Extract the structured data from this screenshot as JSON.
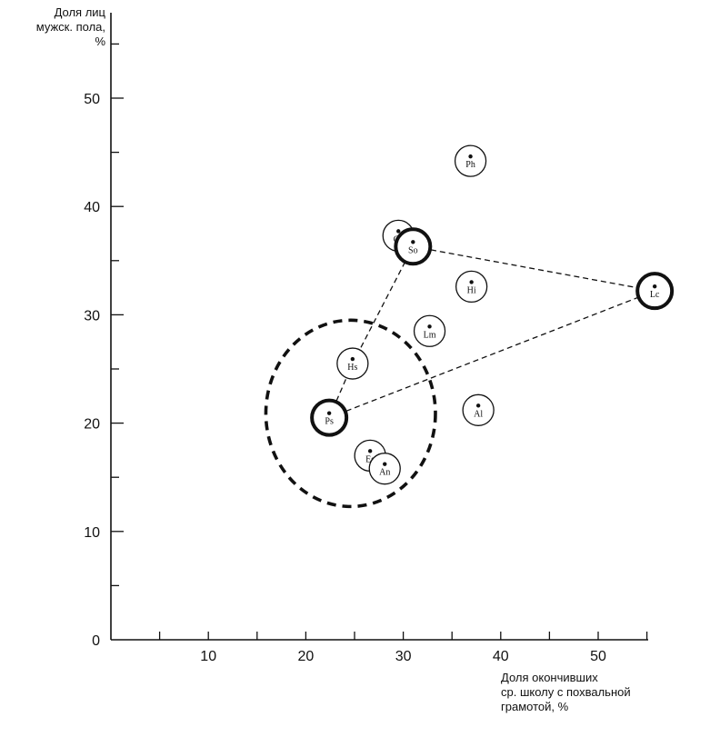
{
  "chart_data": {
    "type": "scatter",
    "title": "",
    "ylabel": "Доля лиц\nмужск. пола,\n%",
    "xlabel": "Доля окончивших\nср. школу с похвальной\nграмотой, %",
    "xlim": [
      0,
      55
    ],
    "ylim": [
      0,
      55
    ],
    "x_ticks": [
      10,
      20,
      30,
      40,
      50
    ],
    "y_ticks": [
      0,
      10,
      20,
      30,
      40,
      50
    ],
    "points": [
      {
        "label": "Ph",
        "x": 36.9,
        "y": 44.2,
        "highlight": false
      },
      {
        "label": "Gs",
        "x": 29.5,
        "y": 37.3,
        "highlight": false
      },
      {
        "label": "So",
        "x": 31.0,
        "y": 36.3,
        "highlight": true
      },
      {
        "label": "Hi",
        "x": 37.0,
        "y": 32.6,
        "highlight": false
      },
      {
        "label": "Lc",
        "x": 55.8,
        "y": 32.2,
        "highlight": true
      },
      {
        "label": "Lm",
        "x": 32.7,
        "y": 28.5,
        "highlight": false
      },
      {
        "label": "Hs",
        "x": 24.8,
        "y": 25.5,
        "highlight": false
      },
      {
        "label": "Ps",
        "x": 22.4,
        "y": 20.5,
        "highlight": true
      },
      {
        "label": "Al",
        "x": 37.7,
        "y": 21.2,
        "highlight": false
      },
      {
        "label": "Es",
        "x": 26.6,
        "y": 17.0,
        "highlight": false
      },
      {
        "label": "An",
        "x": 28.1,
        "y": 15.8,
        "highlight": false
      }
    ],
    "links": [
      [
        "Ps",
        "Hs"
      ],
      [
        "Hs",
        "So"
      ],
      [
        "So",
        "Lc"
      ],
      [
        "Ps",
        "Lc"
      ]
    ],
    "cluster": {
      "center_x": 24.6,
      "center_y": 20.9,
      "radius_x": 8.7,
      "radius_y": 8.6,
      "style": "dashed"
    }
  }
}
